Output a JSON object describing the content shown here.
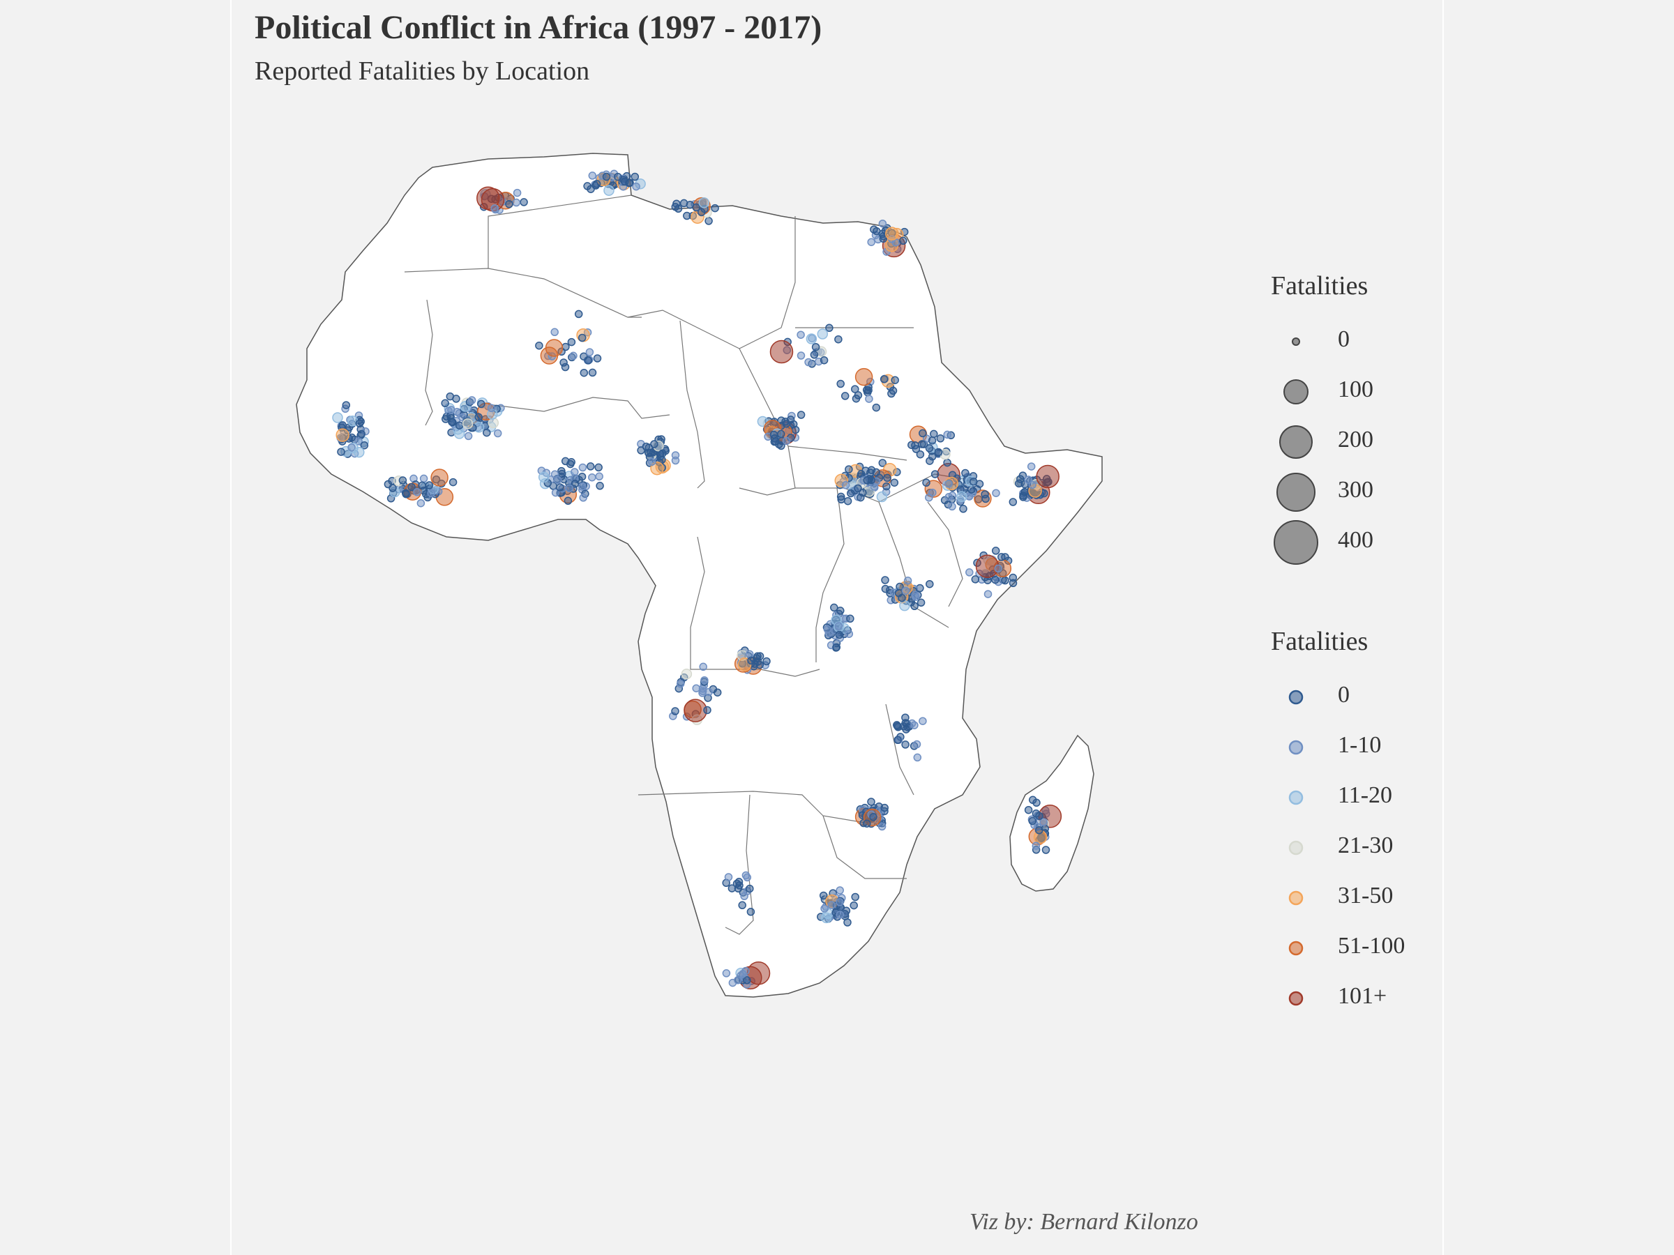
{
  "header": {
    "title": "Political Conflict in Africa (1997 - 2017)",
    "subtitle": "Reported Fatalities by Location"
  },
  "caption": "Viz by: Bernard Kilonzo",
  "map": {
    "region": "Africa",
    "country_fill": "#ffffff",
    "border_color": "#555555",
    "point_opacity": 0.5
  },
  "legend_size": {
    "title": "Fatalities",
    "entries": [
      {
        "label": "0",
        "value": 0
      },
      {
        "label": "100",
        "value": 100
      },
      {
        "label": "200",
        "value": 200
      },
      {
        "label": "300",
        "value": 300
      },
      {
        "label": "400",
        "value": 400
      }
    ],
    "color": "#555555"
  },
  "legend_color": {
    "title": "Fatalities",
    "entries": [
      {
        "label": "0",
        "color": "#2f5a8f"
      },
      {
        "label": "1-10",
        "color": "#6f8fc2"
      },
      {
        "label": "11-20",
        "color": "#93bde0"
      },
      {
        "label": "21-30",
        "color": "#d6d9cf"
      },
      {
        "label": "31-50",
        "color": "#f4a55a"
      },
      {
        "label": "51-100",
        "color": "#d46a2e"
      },
      {
        "label": "101+",
        "color": "#a03a2a"
      }
    ]
  }
}
